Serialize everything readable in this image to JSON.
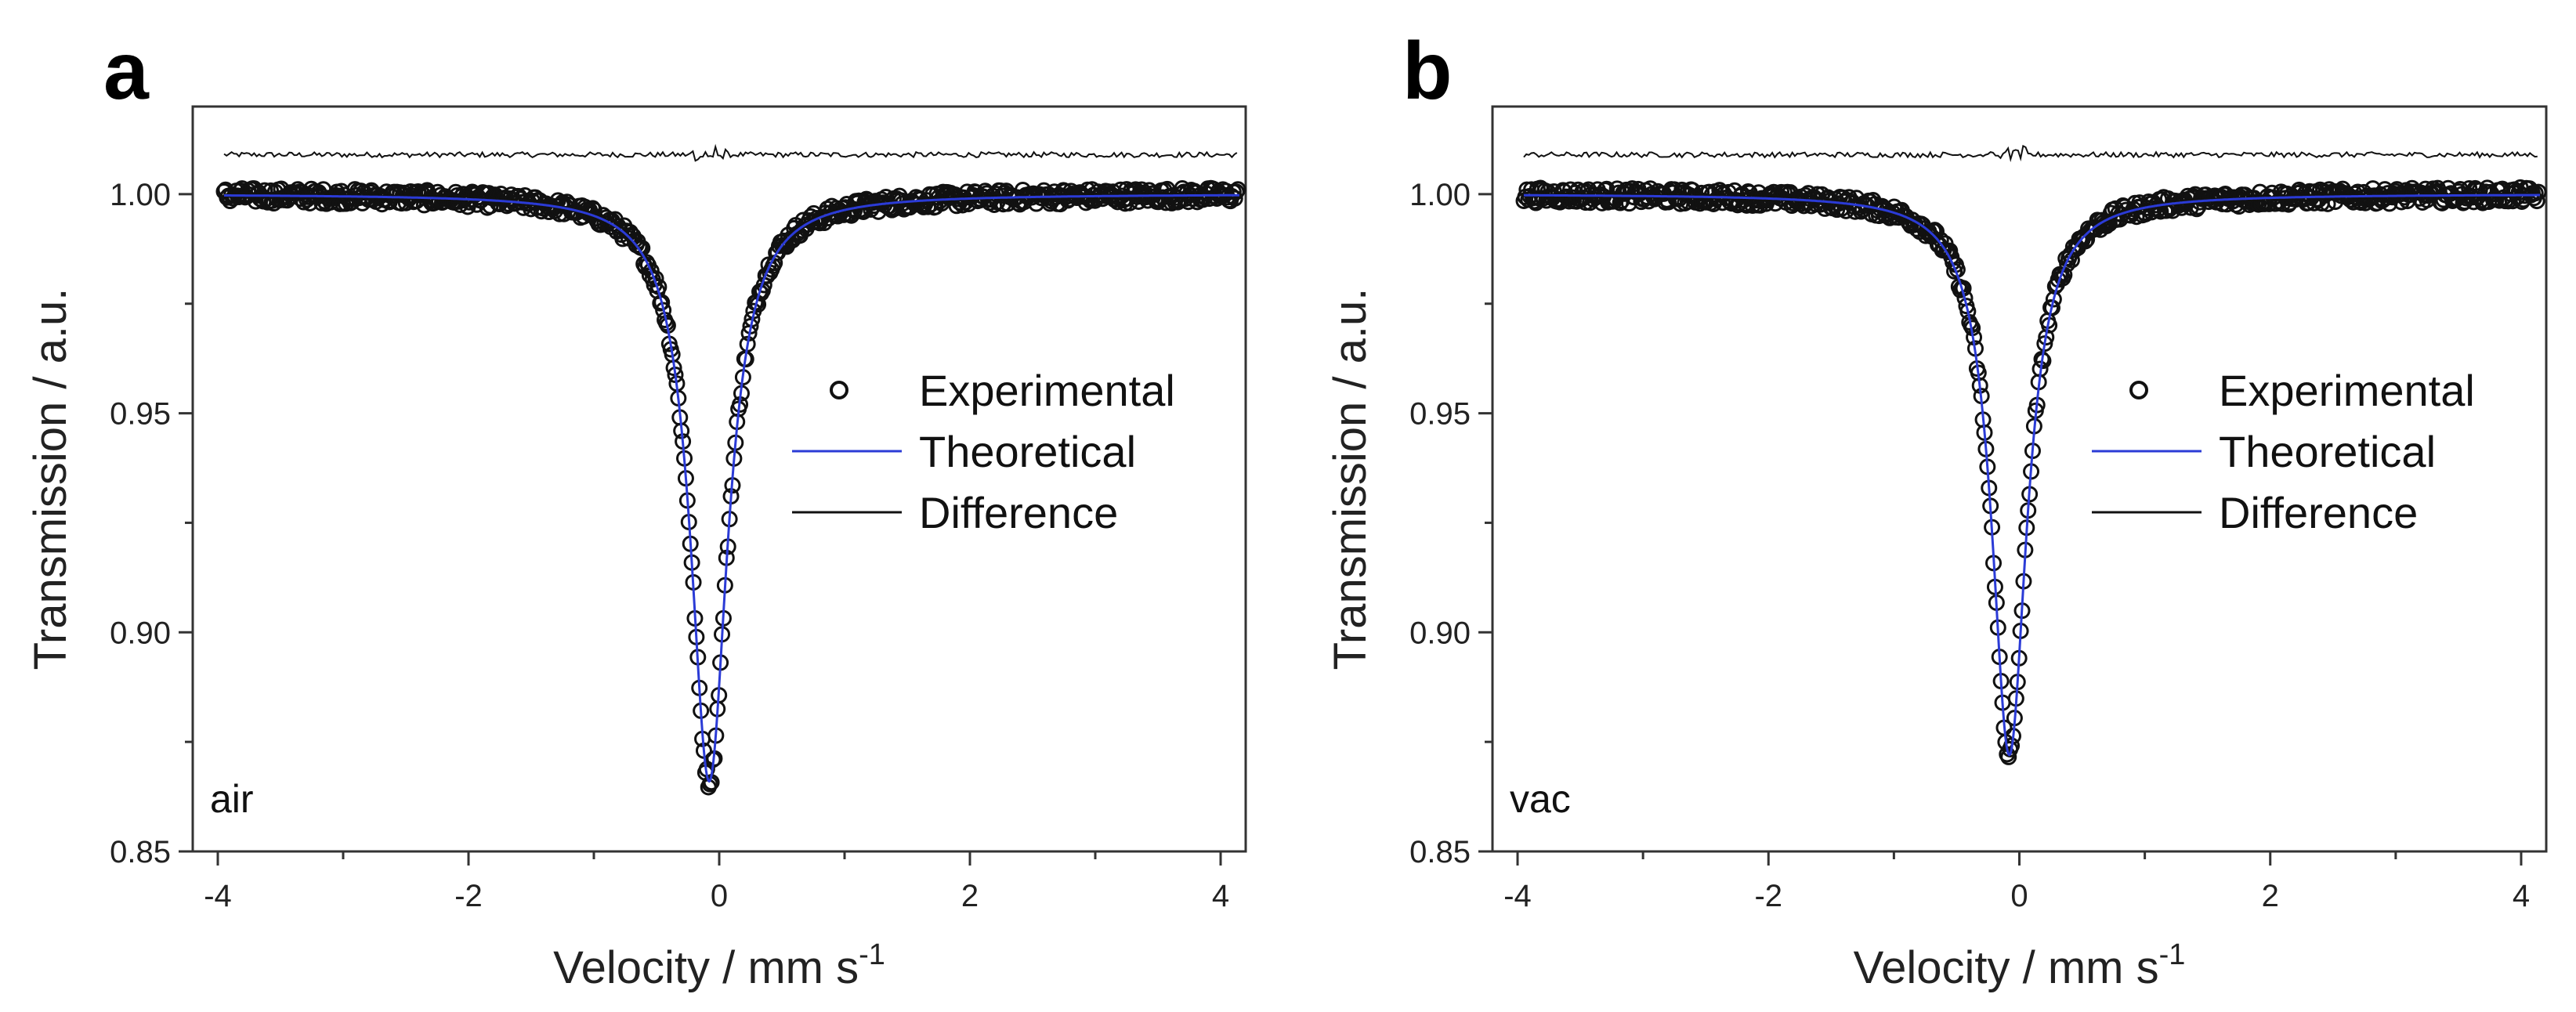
{
  "chart_data": [
    {
      "panel_label": "a",
      "type": "scatter",
      "condition": "air",
      "xlabel": "Velocity / mm s",
      "xlabel_sup": "-1",
      "ylabel": "Transmission / a.u.",
      "xlim": [
        -4.2,
        4.2
      ],
      "ylim": [
        0.85,
        1.02
      ],
      "xticks": [
        -4,
        -2,
        0,
        2,
        4
      ],
      "xtick_labels": [
        "-4",
        "-2",
        "0",
        "2",
        "4"
      ],
      "yticks": [
        0.85,
        0.9,
        0.95,
        1.0
      ],
      "ytick_labels": [
        "0.85",
        "0.90",
        "0.95",
        "1.00"
      ],
      "legend": {
        "position": "center-right",
        "entries": [
          "Experimental",
          "Theoretical",
          "Difference"
        ]
      },
      "fit": {
        "shape": "lorentzian",
        "center": -0.08,
        "hwhm": 0.18,
        "baseline": 1.0,
        "min": 0.866
      },
      "difference_offset": 1.009,
      "series": [
        {
          "name": "Experimental",
          "style": "open-circles",
          "color": "#000000",
          "x": [
            -3.9,
            -3.0,
            -2.0,
            -1.0,
            -0.5,
            -0.3,
            -0.2,
            -0.1,
            -0.08,
            0.0,
            0.1,
            0.2,
            0.3,
            0.5,
            1.0,
            2.0,
            3.0,
            4.1
          ],
          "y": [
            0.9995,
            0.9995,
            0.999,
            0.996,
            0.985,
            0.963,
            0.935,
            0.878,
            0.866,
            0.889,
            0.943,
            0.969,
            0.981,
            0.991,
            0.997,
            0.999,
            0.9995,
            1.0
          ]
        },
        {
          "name": "Theoretical",
          "style": "line",
          "color": "#2b3bd6"
        },
        {
          "name": "Difference",
          "style": "line",
          "color": "#000000"
        }
      ]
    },
    {
      "panel_label": "b",
      "type": "scatter",
      "condition": "vac",
      "xlabel": "Velocity / mm s",
      "xlabel_sup": "-1",
      "ylabel": "Transmission / a.u.",
      "xlim": [
        -4.2,
        4.2
      ],
      "ylim": [
        0.85,
        1.02
      ],
      "xticks": [
        -4,
        -2,
        0,
        2,
        4
      ],
      "xtick_labels": [
        "-4",
        "-2",
        "0",
        "2",
        "4"
      ],
      "yticks": [
        0.85,
        0.9,
        0.95,
        1.0
      ],
      "ytick_labels": [
        "0.85",
        "0.90",
        "0.95",
        "1.00"
      ],
      "legend": {
        "position": "center-right",
        "entries": [
          "Experimental",
          "Theoretical",
          "Difference"
        ]
      },
      "fit": {
        "shape": "lorentzian",
        "center": -0.08,
        "hwhm": 0.17,
        "baseline": 1.0,
        "min": 0.872
      },
      "difference_offset": 1.009,
      "series": [
        {
          "name": "Experimental",
          "style": "open-circles",
          "color": "#000000",
          "x": [
            -3.9,
            -3.0,
            -2.0,
            -1.0,
            -0.5,
            -0.3,
            -0.2,
            -0.1,
            -0.08,
            0.0,
            0.1,
            0.2,
            0.3,
            0.5,
            1.0,
            2.0,
            3.0,
            4.1
          ],
          "y": [
            0.9995,
            0.9995,
            0.999,
            0.996,
            0.986,
            0.965,
            0.938,
            0.884,
            0.872,
            0.894,
            0.946,
            0.971,
            0.982,
            0.992,
            0.997,
            0.999,
            0.9995,
            1.0
          ]
        },
        {
          "name": "Theoretical",
          "style": "line",
          "color": "#2b3bd6"
        },
        {
          "name": "Difference",
          "style": "line",
          "color": "#000000"
        }
      ]
    }
  ]
}
